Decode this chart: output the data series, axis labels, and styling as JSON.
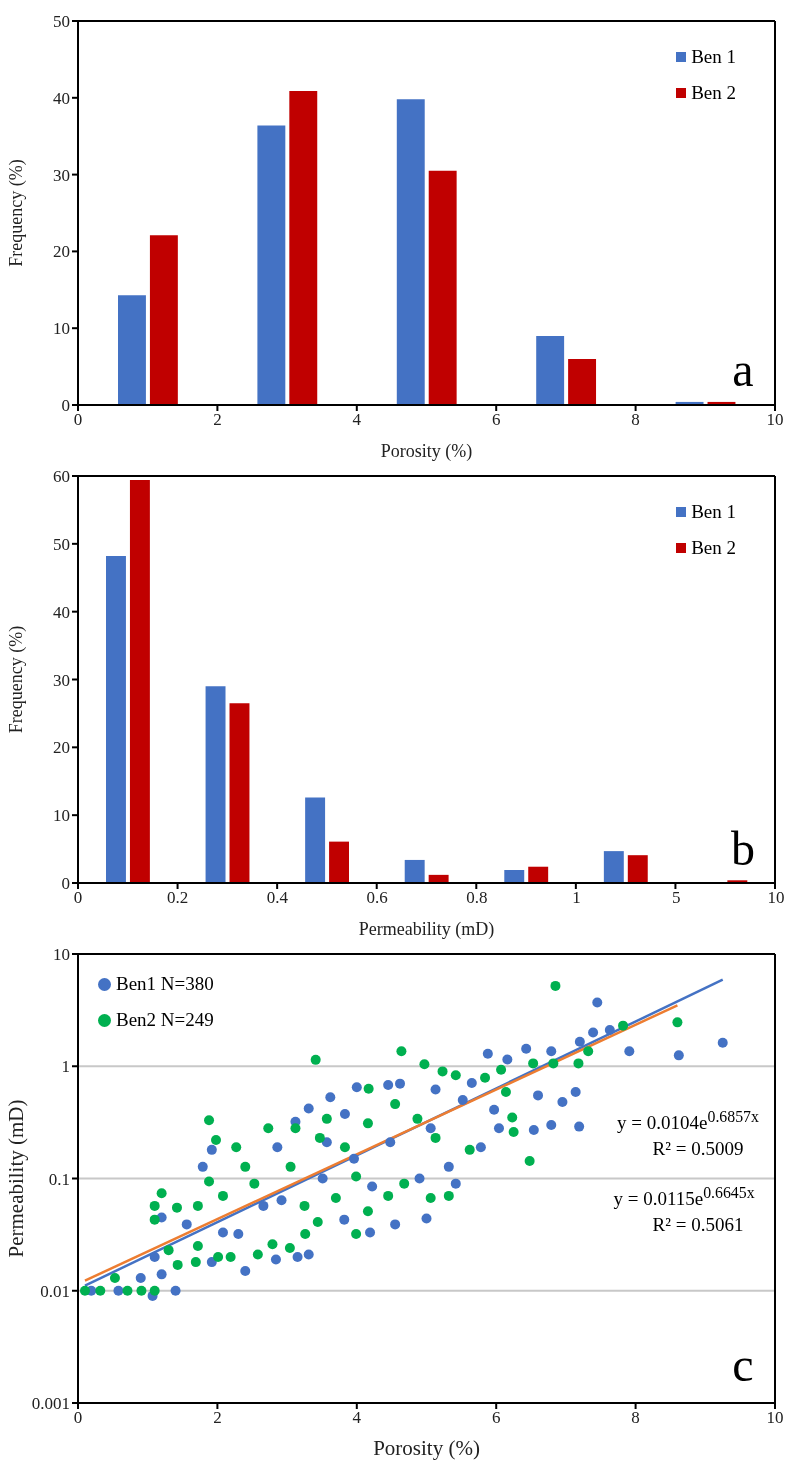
{
  "chart_data": [
    {
      "type": "bar",
      "xlabel": "Porosity (%)",
      "ylabel": "Frequency (%)",
      "x": [
        1,
        3,
        5,
        7,
        9
      ],
      "xlim": [
        0,
        10
      ],
      "xticks": [
        0,
        2,
        4,
        6,
        8,
        10
      ],
      "ylim": [
        0,
        50
      ],
      "yticks": [
        0,
        10,
        20,
        30,
        40,
        50
      ],
      "legend": "top right",
      "annotations": [
        "a"
      ],
      "series": [
        {
          "name": "Ben 1",
          "color": "#4472c4",
          "values": [
            14.3,
            36.4,
            39.8,
            9.0,
            0.4
          ]
        },
        {
          "name": "Ben 2",
          "color": "#c00000",
          "values": [
            22.1,
            40.9,
            30.5,
            6.0,
            0.4
          ]
        }
      ]
    },
    {
      "type": "bar",
      "xlabel": "Permeability (mD)",
      "ylabel": "Frequency (%)",
      "categories": [
        null,
        null,
        null,
        null,
        null,
        null,
        null
      ],
      "ylim": [
        0,
        60
      ],
      "yticks": [
        0,
        10,
        20,
        30,
        40,
        50,
        60
      ],
      "legend": "top right",
      "annotations": [
        "0",
        "0.2",
        "0.4",
        "0.6",
        "0.8",
        "1",
        "5",
        "10",
        "b"
      ],
      "series": [
        {
          "name": "Ben 1",
          "color": "#4472c4",
          "values": [
            48.2,
            29.0,
            12.6,
            3.4,
            1.9,
            4.7,
            0
          ]
        },
        {
          "name": "Ben 2",
          "color": "#c00000",
          "values": [
            59.4,
            26.5,
            6.1,
            1.2,
            2.4,
            4.1,
            0.4
          ]
        }
      ]
    },
    {
      "type": "scatter",
      "xlabel": "Porosity (%)",
      "ylabel": "Permeability (mD)",
      "xlim": [
        0,
        10
      ],
      "xticks": [
        0,
        2,
        4,
        6,
        8,
        10
      ],
      "ylim": [
        0.001,
        10
      ],
      "yticks": [
        0.001,
        0.01,
        0.1,
        1,
        10
      ],
      "log": "y",
      "grid": "y",
      "legend": "top left",
      "marker": "circle",
      "annotations": [
        "y = 0.0104e$^{0.6857x}$",
        "R² = 0.5009",
        "y = 0.0115e$^{0.6645x}$",
        "R² = 0.5061",
        "c"
      ],
      "series": [
        {
          "name": "Ben1 N=380",
          "color": "#4472c4",
          "x": [
            9.25,
            8.62,
            7.91,
            7.45,
            7.39,
            7.63,
            7.2,
            7.14,
            6.95,
            7.19,
            6.79,
            6.54,
            6.6,
            6.43,
            6.79,
            6.16,
            5.88,
            6.04,
            5.78,
            5.42,
            5.0,
            4.55,
            4.19,
            3.82,
            4.62,
            4.45,
            4.0,
            3.62,
            3.31,
            3.12,
            4.22,
            4.9,
            3.31,
            3.15,
            2.84,
            2.4,
            2.3,
            2.08,
            1.92,
            1.79,
            1.92,
            1.56,
            1.2,
            1.1,
            0.9,
            1.2,
            1.4,
            1.07,
            0.58,
            0.19,
            2.66,
            2.86,
            3.57,
            3.96,
            4.48,
            5.06,
            5.52,
            5.32,
            3.51,
            2.92,
            3.83,
            5.97,
            5.65,
            5.13
          ],
          "values": [
            1.62,
            1.25,
            1.36,
            3.7,
            2.0,
            2.1,
            1.65,
            0.59,
            0.48,
            0.29,
            0.3,
            0.27,
            0.55,
            1.43,
            1.36,
            1.15,
            1.29,
            0.28,
            0.19,
            0.09,
            0.044,
            0.039,
            0.033,
            0.043,
            0.7,
            0.68,
            0.65,
            0.53,
            0.42,
            0.32,
            0.085,
            0.1,
            0.021,
            0.02,
            0.019,
            0.015,
            0.032,
            0.033,
            0.018,
            0.127,
            0.18,
            0.039,
            0.045,
            0.02,
            0.013,
            0.014,
            0.01,
            0.009,
            0.01,
            0.01,
            0.057,
            0.19,
            0.21,
            0.15,
            0.21,
            0.28,
            0.5,
            0.127,
            0.1,
            0.064,
            0.376,
            0.41,
            0.71,
            0.62
          ]
        },
        {
          "name": "Ben2 N=249",
          "color": "#00b050",
          "x": [
            6.85,
            8.6,
            7.82,
            7.32,
            7.18,
            6.82,
            6.48,
            6.25,
            6.23,
            6.14,
            6.07,
            6.53,
            5.84,
            5.62,
            5.42,
            5.23,
            4.97,
            5.32,
            5.06,
            4.68,
            4.45,
            4.16,
            3.99,
            4.64,
            4.17,
            3.41,
            1.88,
            1.98,
            2.27,
            1.1,
            1.1,
            1.42,
            1.43,
            1.3,
            1.72,
            1.69,
            2.01,
            2.19,
            2.58,
            2.79,
            3.04,
            3.26,
            3.44,
            3.99,
            3.7,
            3.25,
            2.73,
            3.12,
            3.47,
            3.57,
            3.83,
            4.16,
            4.55,
            4.87,
            5.13,
            2.4,
            1.88,
            2.08,
            2.53,
            3.05,
            0.53,
            0.1,
            0.32,
            0.71,
            0.91,
            1.1,
            1.2,
            1.72
          ],
          "values": [
            5.2,
            2.46,
            2.3,
            1.36,
            1.06,
            1.06,
            0.143,
            0.26,
            0.35,
            0.59,
            0.93,
            1.06,
            0.79,
            0.18,
            0.83,
            0.9,
            1.04,
            0.07,
            0.067,
            0.09,
            0.07,
            0.051,
            0.032,
            1.36,
            0.63,
            1.14,
            0.33,
            0.22,
            0.19,
            0.057,
            0.043,
            0.055,
            0.017,
            0.023,
            0.025,
            0.018,
            0.02,
            0.02,
            0.021,
            0.026,
            0.024,
            0.032,
            0.041,
            0.104,
            0.067,
            0.057,
            0.28,
            0.28,
            0.23,
            0.34,
            0.19,
            0.31,
            0.46,
            0.34,
            0.23,
            0.127,
            0.094,
            0.07,
            0.09,
            0.127,
            0.013,
            0.01,
            0.01,
            0.01,
            0.01,
            0.01,
            0.074,
            0.057
          ]
        },
        {
          "type": "line",
          "color": "#4472c4",
          "marker": "none",
          "x": [
            0.1,
            9.25
          ],
          "values": [
            0.0111,
            5.9
          ]
        },
        {
          "type": "line",
          "color": "#ed7d31",
          "marker": "none",
          "x": [
            0.1,
            8.6
          ],
          "values": [
            0.0123,
            3.49
          ]
        }
      ]
    }
  ]
}
